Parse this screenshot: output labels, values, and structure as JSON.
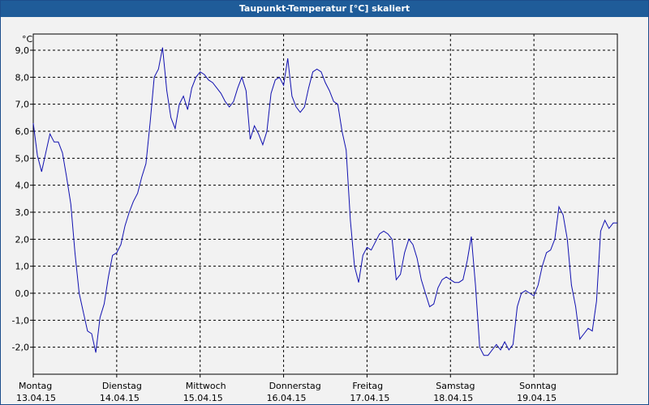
{
  "window": {
    "title": "Taupunkt-Temperatur [°C] skaliert"
  },
  "colors": {
    "titlebar": "#1f5c99",
    "line": "#1010b0",
    "plot_bg": "#f2f2f2",
    "grid": "#000000"
  },
  "chart_data": {
    "type": "line",
    "title": "Taupunkt-Temperatur [°C] skaliert",
    "ylabel": "°C",
    "xlabel": "",
    "ylim": [
      -3.0,
      9.6
    ],
    "xlim": [
      0,
      7
    ],
    "y_ticks": [
      -2.0,
      -1.0,
      0.0,
      1.0,
      2.0,
      3.0,
      4.0,
      5.0,
      6.0,
      7.0,
      8.0,
      9.0
    ],
    "y_tick_labels": [
      "-2,0",
      "-1,0",
      "0,0",
      "1,0",
      "2,0",
      "3,0",
      "4,0",
      "5,0",
      "6,0",
      "7,0",
      "8,0",
      "9,0"
    ],
    "x_tick_labels": [
      {
        "day": "Montag",
        "date": "13.04.15"
      },
      {
        "day": "Dienstag",
        "date": "14.04.15"
      },
      {
        "day": "Mittwoch",
        "date": "15.04.15"
      },
      {
        "day": "Donnerstag",
        "date": "16.04.15"
      },
      {
        "day": "Freitag",
        "date": "17.04.15"
      },
      {
        "day": "Samstag",
        "date": "18.04.15"
      },
      {
        "day": "Sonntag",
        "date": "19.04.15"
      }
    ],
    "grid": "dashed",
    "series": [
      {
        "x": [
          0,
          0.05,
          0.1,
          0.15,
          0.2,
          0.25,
          0.3,
          0.35,
          0.4,
          0.45,
          0.5,
          0.55,
          0.6,
          0.65,
          0.7,
          0.75,
          0.8,
          0.85,
          0.9,
          0.95,
          1.0,
          1.05,
          1.1,
          1.15,
          1.2,
          1.25,
          1.3,
          1.35,
          1.4,
          1.45,
          1.5,
          1.55,
          1.6,
          1.65,
          1.7,
          1.75,
          1.8,
          1.85,
          1.9,
          1.95,
          2.0,
          2.05,
          2.1,
          2.15,
          2.2,
          2.25,
          2.3,
          2.35,
          2.4,
          2.45,
          2.5,
          2.55,
          2.6,
          2.65,
          2.7,
          2.75,
          2.8,
          2.85,
          2.9,
          2.95,
          3.0,
          3.05,
          3.1,
          3.15,
          3.2,
          3.25,
          3.3,
          3.35,
          3.4,
          3.45,
          3.5,
          3.55,
          3.6,
          3.65,
          3.7,
          3.75,
          3.8,
          3.85,
          3.9,
          3.95,
          4.0,
          4.05,
          4.1,
          4.15,
          4.2,
          4.25,
          4.3,
          4.35,
          4.4,
          4.45,
          4.5,
          4.55,
          4.6,
          4.65,
          4.7,
          4.75,
          4.8,
          4.85,
          4.9,
          4.95,
          5.0,
          5.05,
          5.1,
          5.15,
          5.2,
          5.25,
          5.3,
          5.35,
          5.4,
          5.45,
          5.5,
          5.55,
          5.6,
          5.65,
          5.7,
          5.75,
          5.8,
          5.85,
          5.9,
          5.95,
          6.0,
          6.05,
          6.1,
          6.15,
          6.2,
          6.25,
          6.3,
          6.35,
          6.4,
          6.45,
          6.5,
          6.55,
          6.6,
          6.65,
          6.7,
          6.75,
          6.8,
          6.85,
          6.9,
          6.95,
          7.0
        ],
        "values": [
          6.3,
          5.1,
          4.5,
          5.2,
          5.9,
          5.6,
          5.6,
          5.2,
          4.3,
          3.3,
          1.5,
          0.0,
          -0.7,
          -1.4,
          -1.5,
          -2.2,
          -0.9,
          -0.4,
          0.6,
          1.4,
          1.5,
          1.8,
          2.5,
          3.0,
          3.4,
          3.7,
          4.3,
          4.8,
          6.3,
          8.0,
          8.3,
          9.1,
          7.5,
          6.5,
          6.1,
          7.0,
          7.3,
          6.8,
          7.6,
          8.0,
          8.2,
          8.1,
          7.9,
          7.8,
          7.6,
          7.4,
          7.1,
          6.9,
          7.1,
          7.6,
          8.0,
          7.5,
          5.7,
          6.2,
          5.9,
          5.5,
          6.0,
          7.4,
          7.9,
          8.0,
          7.7,
          8.7,
          7.3,
          6.9,
          6.7,
          6.9,
          7.6,
          8.2,
          8.3,
          8.2,
          7.8,
          7.5,
          7.1,
          7.0,
          6.0,
          5.3,
          2.7,
          1.0,
          0.4,
          1.4,
          1.7,
          1.6,
          1.9,
          2.2,
          2.3,
          2.2,
          2.0,
          0.5,
          0.7,
          1.5,
          2.0,
          1.8,
          1.3,
          0.5,
          0.0,
          -0.5,
          -0.4,
          0.2,
          0.5,
          0.6,
          0.5,
          0.4,
          0.4,
          0.5,
          1.2,
          2.1,
          0.3,
          -2.0,
          -2.3,
          -2.3,
          -2.1,
          -1.9,
          -2.1,
          -1.8,
          -2.1,
          -1.9,
          -0.5,
          0.0,
          0.1,
          0.0,
          -0.1,
          0.3,
          1.0,
          1.5,
          1.6,
          2.0,
          3.2,
          2.9,
          2.0,
          0.3,
          -0.5,
          -1.7,
          -1.5,
          -1.3,
          -1.4,
          -0.3,
          2.3,
          2.7,
          2.4,
          2.6,
          2.6
        ]
      }
    ]
  }
}
